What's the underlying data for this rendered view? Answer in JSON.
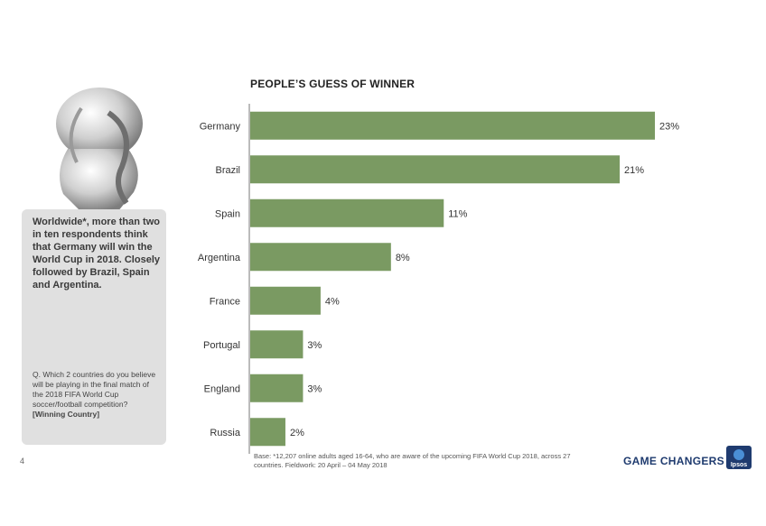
{
  "page": {
    "number": "4",
    "headline": "Worldwide*, more than two in ten respondents think that Germany will win the World Cup in 2018. Closely followed by Brazil, Spain and Argentina.",
    "question": "Q. Which 2 countries do you believe will be playing in the final match of the 2018 FIFA World Cup soccer/football competition?",
    "question_bold": "[Winning Country]",
    "base_note": "Base: *12,207 online adults aged 16-64, who are aware of the upcoming FIFA World Cup 2018, across 27 countries. Fieldwork: 20 April – 04 May 2018",
    "brand_text": "GAME CHANGERS",
    "logo_text": "Ipsos",
    "colors": {
      "bar": "#7a9a62",
      "panel": "#e0e0e0",
      "brand": "#1f3b6f",
      "logo_bg": "#1f3b6f"
    }
  },
  "chart_data": {
    "type": "bar",
    "orientation": "horizontal",
    "title": "PEOPLE’S GUESS OF WINNER",
    "categories": [
      "Germany",
      "Brazil",
      "Spain",
      "Argentina",
      "France",
      "Portugal",
      "England",
      "Russia"
    ],
    "values": [
      23,
      21,
      11,
      8,
      4,
      3,
      3,
      2
    ],
    "value_labels": [
      "23%",
      "21%",
      "11%",
      "8%",
      "4%",
      "3%",
      "3%",
      "2%"
    ],
    "unit": "%",
    "xlim": [
      0,
      23
    ],
    "grid": false,
    "legend": "none"
  }
}
